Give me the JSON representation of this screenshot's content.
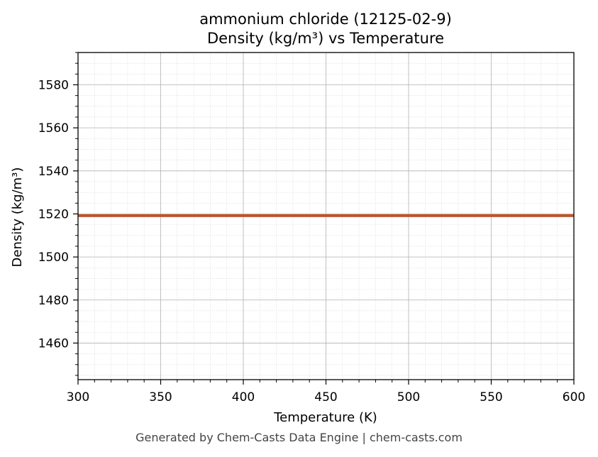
{
  "chart_data": {
    "type": "line",
    "title": "ammonium chloride (12125-02-9)",
    "subtitle": "Density (kg/m³) vs Temperature",
    "xlabel": "Temperature (K)",
    "ylabel": "Density (kg/m³)",
    "xlim": [
      300,
      600
    ],
    "ylim": [
      1443,
      1595
    ],
    "xticks": [
      300,
      350,
      400,
      450,
      500,
      550,
      600
    ],
    "yticks": [
      1460,
      1480,
      1500,
      1520,
      1540,
      1560,
      1580
    ],
    "grid": true,
    "series": [
      {
        "x": [
          300,
          600
        ],
        "y": [
          1519.2,
          1519.2
        ],
        "color": "#c0542a"
      }
    ]
  },
  "footer": "Generated by Chem-Casts Data Engine | chem-casts.com"
}
